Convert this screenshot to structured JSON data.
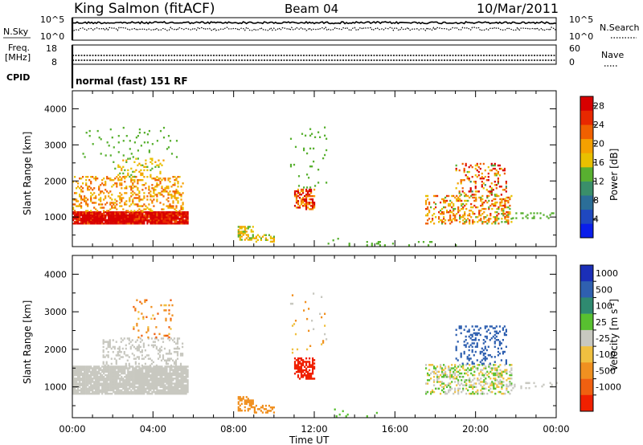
{
  "header": {
    "station": "King Salmon (fitACF)",
    "beam": "Beam 04",
    "date": "10/Mar/2011"
  },
  "noise_panel": {
    "left_label": "N.Sky",
    "right_label": "N.Search",
    "left_ticks": [
      "10^5",
      "10^0"
    ],
    "right_ticks": [
      "10^5",
      "10^0"
    ]
  },
  "freq_panel": {
    "left_label_1": "Freq.",
    "left_label_2": "[MHz]",
    "left_ticks": [
      "18",
      "8"
    ],
    "right_label": "Nave",
    "right_ticks": [
      "60",
      "0"
    ]
  },
  "cpid_panel": {
    "label": "CPID",
    "text": "normal (fast) 151 RF"
  },
  "colors": {
    "power_scale": [
      "#0a1eea",
      "#1f48c0",
      "#2b6e98",
      "#3a8f6a",
      "#58b030",
      "#e8c000",
      "#f5a000",
      "#f06000",
      "#e82800",
      "#d80000"
    ],
    "velocity_scale": [
      "#1b2fb8",
      "#2f60b0",
      "#2f8a70",
      "#58c030",
      "#c8c8c0",
      "#f0c040",
      "#f09020",
      "#f06010",
      "#f02000"
    ],
    "ground_scatter": "#c8c8c0"
  },
  "chart_data": [
    {
      "type": "heatmap",
      "panel": "power",
      "ylabel": "Slant Range [km]",
      "xlabel": "",
      "ylim": [
        180,
        4500
      ],
      "yticks": [
        "1000",
        "2000",
        "3000",
        "4000"
      ],
      "colorbar_label": "Power [dB]",
      "colorbar_ticks": [
        "4",
        "8",
        "12",
        "16",
        "20",
        "24",
        "28"
      ],
      "clim": [
        0,
        30
      ],
      "regions": [
        {
          "t0": 0.0,
          "t1": 5.7,
          "r0": 800,
          "r1": 1150,
          "v": 9,
          "density": 0.95,
          "jitter": 4
        },
        {
          "t0": 0.4,
          "t1": 3.0,
          "r0": 850,
          "r1": 1050,
          "v": 15,
          "density": 0.7,
          "jitter": 3
        },
        {
          "t0": 0.0,
          "t1": 5.5,
          "r0": 1150,
          "r1": 2100,
          "v": 6,
          "density": 0.28,
          "jitter": 3
        },
        {
          "t0": 2.0,
          "t1": 4.5,
          "r0": 2100,
          "r1": 2600,
          "v": 5,
          "density": 0.16,
          "jitter": 2
        },
        {
          "t0": 0.5,
          "t1": 5.2,
          "r0": 2600,
          "r1": 3500,
          "v": 4,
          "density": 0.04,
          "jitter": 1
        },
        {
          "t0": 8.2,
          "t1": 9.0,
          "r0": 350,
          "r1": 750,
          "v": 5,
          "density": 0.55,
          "jitter": 3
        },
        {
          "t0": 9.0,
          "t1": 10.0,
          "r0": 300,
          "r1": 520,
          "v": 5,
          "density": 0.4,
          "jitter": 2
        },
        {
          "t0": 11.0,
          "t1": 12.0,
          "r0": 1200,
          "r1": 1750,
          "v": 8,
          "density": 0.55,
          "jitter": 5
        },
        {
          "t0": 10.8,
          "t1": 12.6,
          "r0": 1800,
          "r1": 3500,
          "v": 4,
          "density": 0.04,
          "jitter": 1
        },
        {
          "t0": 12.5,
          "t1": 15.5,
          "r0": 200,
          "r1": 420,
          "v": 4,
          "density": 0.07,
          "jitter": 1
        },
        {
          "t0": 17.5,
          "t1": 21.8,
          "r0": 800,
          "r1": 1600,
          "v": 6,
          "density": 0.35,
          "jitter": 4
        },
        {
          "t0": 19.0,
          "t1": 21.5,
          "r0": 1600,
          "r1": 2500,
          "v": 7,
          "density": 0.2,
          "jitter": 8
        },
        {
          "t0": 21.5,
          "t1": 24.0,
          "r0": 950,
          "r1": 1100,
          "v": 4,
          "density": 0.2,
          "jitter": 1
        },
        {
          "t0": 14.5,
          "t1": 21.0,
          "r0": 200,
          "r1": 320,
          "v": 4,
          "density": 0.05,
          "jitter": 1
        }
      ]
    },
    {
      "type": "heatmap",
      "panel": "velocity",
      "ylabel": "Slant Range [km]",
      "xlabel": "Time UT",
      "ylim": [
        180,
        4500
      ],
      "yticks": [
        "1000",
        "2000",
        "3000",
        "4000"
      ],
      "xticks": [
        "00:00",
        "04:00",
        "08:00",
        "12:00",
        "16:00",
        "20:00",
        "00:00"
      ],
      "xlim": [
        0,
        24
      ],
      "colorbar_label": "Velocity [m s-1]",
      "colorbar_ticks": [
        "1000",
        "500",
        "100",
        "25",
        "-25",
        "-100",
        "-500",
        "-1000"
      ],
      "regions": [
        {
          "t0": 0.0,
          "t1": 5.7,
          "r0": 800,
          "r1": 1550,
          "v": 4,
          "density": 0.9,
          "jitter": 0
        },
        {
          "t0": 1.5,
          "t1": 5.5,
          "r0": 1550,
          "r1": 2300,
          "v": 4,
          "density": 0.25,
          "jitter": 0
        },
        {
          "t0": 3.0,
          "t1": 5.0,
          "r0": 2300,
          "r1": 3300,
          "v": 6,
          "density": 0.08,
          "jitter": 2
        },
        {
          "t0": 8.2,
          "t1": 9.0,
          "r0": 350,
          "r1": 750,
          "v": 6,
          "density": 0.55,
          "jitter": 1
        },
        {
          "t0": 9.0,
          "t1": 10.0,
          "r0": 300,
          "r1": 520,
          "v": 6,
          "density": 0.4,
          "jitter": 1
        },
        {
          "t0": 11.0,
          "t1": 12.0,
          "r0": 1200,
          "r1": 1750,
          "v": 8,
          "density": 0.55,
          "jitter": 1
        },
        {
          "t0": 10.8,
          "t1": 12.6,
          "r0": 1800,
          "r1": 3500,
          "v": 5,
          "density": 0.04,
          "jitter": 3
        },
        {
          "t0": 12.5,
          "t1": 15.5,
          "r0": 200,
          "r1": 420,
          "v": 3,
          "density": 0.07,
          "jitter": 1
        },
        {
          "t0": 17.5,
          "t1": 21.8,
          "r0": 800,
          "r1": 1600,
          "v": 4,
          "density": 0.35,
          "jitter": 3
        },
        {
          "t0": 19.0,
          "t1": 21.5,
          "r0": 1600,
          "r1": 2600,
          "v": 1,
          "density": 0.22,
          "jitter": 1
        },
        {
          "t0": 21.5,
          "t1": 24.0,
          "r0": 950,
          "r1": 1100,
          "v": 4,
          "density": 0.2,
          "jitter": 0
        }
      ]
    }
  ]
}
